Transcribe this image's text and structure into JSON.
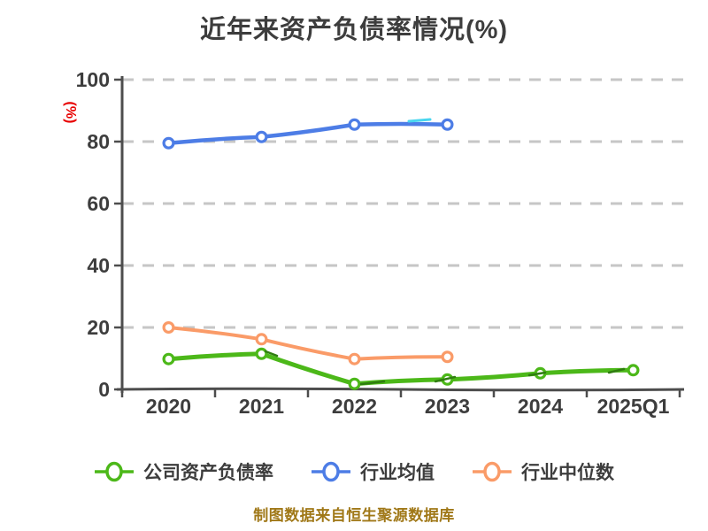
{
  "title": "近年来资产负债率情况(%)",
  "y_axis_label": "(%)",
  "footer": "制图数据来自恒生聚源数据库",
  "colors": {
    "background": "#ffffff",
    "title_text": "#3d3d3d",
    "axis_text": "#3d3d3d",
    "axis_line": "#4d4d4d",
    "gridline": "#c6c6c6",
    "ylabel_red": "#e80000",
    "footer_text": "#a07818",
    "company": "#4cb819",
    "industry_mean": "#4d7de6",
    "industry_median": "#fa9b68"
  },
  "legend": [
    {
      "label": "公司资产负债率",
      "color": "#4cb819"
    },
    {
      "label": "行业均值",
      "color": "#4d7de6"
    },
    {
      "label": "行业中位数",
      "color": "#fa9b68"
    }
  ],
  "chart_data": {
    "type": "line",
    "title": "近年来资产负债率情况(%)",
    "categories": [
      "2020",
      "2021",
      "2022",
      "2023",
      "2024",
      "2025Q1"
    ],
    "series": [
      {
        "name": "公司资产负债率",
        "color": "#4cb819",
        "values": [
          9.8,
          11.5,
          1.8,
          3.2,
          5.2,
          6.2
        ]
      },
      {
        "name": "行业均值",
        "color": "#4d7de6",
        "values": [
          79.5,
          81.5,
          85.5,
          85.5,
          null,
          null
        ]
      },
      {
        "name": "行业中位数",
        "color": "#fa9b68",
        "values": [
          20,
          16.2,
          9.8,
          10.5,
          null,
          null
        ]
      }
    ],
    "xlabel": "",
    "ylabel": "(%)",
    "ylim": [
      0,
      100
    ],
    "ytick_step": 20,
    "grid": "horizontal-dashed",
    "legend_position": "bottom",
    "marker": "hollow-circle",
    "style": "hand-drawn"
  }
}
